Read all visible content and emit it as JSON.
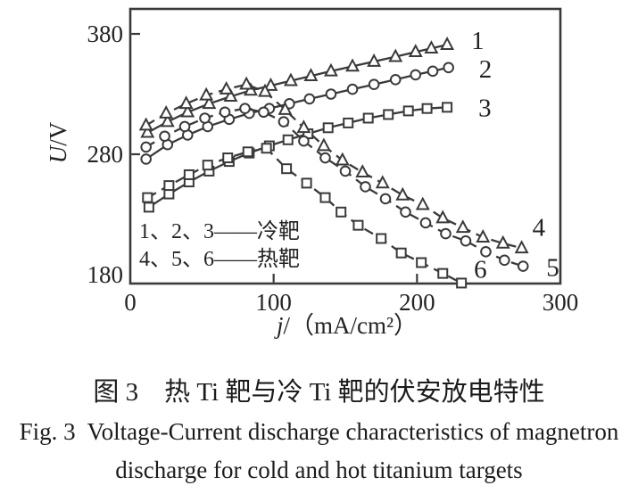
{
  "colors": {
    "ink": "#3a3a3a",
    "marker_fill": "#ffffff",
    "text": "#1c1c1c",
    "background": "#ffffff"
  },
  "caption": {
    "zh": "图 3　热 Ti 靶与冷 Ti 靶的伏安放电特性",
    "en_line1": "Fig. 3  Voltage-Current discharge characteristics of magnetron",
    "en_line2": "discharge for cold and hot titanium targets"
  },
  "chart_data": {
    "type": "line",
    "title": "图 3 热 Ti 靶与冷 Ti 靶的伏安放电特性 / Fig. 3 Voltage-Current discharge characteristics of magnetron discharge for cold and hot titanium targets",
    "xlabel": "j/（mA/cm²）",
    "xlabel_var": "j",
    "xlabel_rest": "/（mA/cm²）",
    "ylabel": "U/V",
    "ylabel_var": "U",
    "ylabel_rest": "/V",
    "xlim": [
      0,
      300
    ],
    "ylim": [
      180,
      380
    ],
    "grid": false,
    "legend": {
      "position": "inside bottom-left",
      "lines": [
        "1、2、3——冷靶",
        "4、5、6——热靶"
      ]
    },
    "axis": {
      "x": {
        "ticks": [
          {
            "label": "0",
            "value": 0,
            "mark": false
          },
          {
            "label": "100",
            "value": 100,
            "mark": true
          },
          {
            "label": "200",
            "value": 200,
            "mark": true
          },
          {
            "label": "300",
            "value": 300,
            "mark": false
          }
        ]
      },
      "y": {
        "ticks": [
          {
            "label": "380",
            "value": 380,
            "mark": true
          },
          {
            "label": "280",
            "value": 280,
            "mark": true
          },
          {
            "label": "180",
            "value": 180,
            "mark": false
          }
        ]
      }
    },
    "series": [
      {
        "name": "1",
        "group": "冷靶 (cold target)",
        "marker": "triangle",
        "line": "solid",
        "points": [
          [
            12,
            298
          ],
          [
            26,
            307
          ],
          [
            40,
            315
          ],
          [
            55,
            322
          ],
          [
            70,
            328
          ],
          [
            84,
            333
          ],
          [
            98,
            337
          ],
          [
            112,
            341
          ],
          [
            126,
            345
          ],
          [
            140,
            349
          ],
          [
            155,
            353
          ],
          [
            170,
            357
          ],
          [
            185,
            361
          ],
          [
            199,
            365
          ],
          [
            210,
            368
          ],
          [
            221,
            371
          ]
        ]
      },
      {
        "name": "2",
        "group": "冷靶 (cold target)",
        "marker": "circle",
        "line": "solid",
        "points": [
          [
            11,
            276
          ],
          [
            26,
            288
          ],
          [
            40,
            296
          ],
          [
            54,
            303
          ],
          [
            69,
            309
          ],
          [
            83,
            314
          ],
          [
            97,
            318
          ],
          [
            111,
            322
          ],
          [
            125,
            326
          ],
          [
            140,
            330
          ],
          [
            155,
            334
          ],
          [
            170,
            338
          ],
          [
            185,
            342
          ],
          [
            199,
            346
          ],
          [
            211,
            349
          ],
          [
            222,
            352
          ]
        ]
      },
      {
        "name": "3",
        "group": "冷靶 (cold target)",
        "marker": "square",
        "line": "solid",
        "points": [
          [
            13,
            236
          ],
          [
            27,
            247
          ],
          [
            41,
            257
          ],
          [
            55,
            266
          ],
          [
            69,
            274
          ],
          [
            83,
            281
          ],
          [
            97,
            287
          ],
          [
            110,
            292
          ],
          [
            124,
            297
          ],
          [
            138,
            302
          ],
          [
            152,
            306
          ],
          [
            166,
            310
          ],
          [
            180,
            313
          ],
          [
            194,
            316
          ],
          [
            207,
            318
          ],
          [
            221,
            319
          ]
        ]
      },
      {
        "name": "4",
        "group": "热靶 (hot target)",
        "marker": "triangle",
        "line": "dashed",
        "points": [
          [
            11,
            304
          ],
          [
            25,
            314
          ],
          [
            39,
            322
          ],
          [
            53,
            329
          ],
          [
            67,
            334
          ],
          [
            81,
            338
          ],
          [
            94,
            332
          ],
          [
            108,
            317
          ],
          [
            121,
            302
          ],
          [
            135,
            287
          ],
          [
            148,
            275
          ],
          [
            162,
            265
          ],
          [
            176,
            256
          ],
          [
            190,
            246
          ],
          [
            204,
            238
          ],
          [
            218,
            227
          ],
          [
            232,
            219
          ],
          [
            246,
            211
          ],
          [
            260,
            206
          ],
          [
            273,
            202
          ]
        ]
      },
      {
        "name": "5",
        "group": "热靶 (hot target)",
        "marker": "circle",
        "line": "dashed",
        "points": [
          [
            11,
            286
          ],
          [
            24,
            295
          ],
          [
            38,
            303
          ],
          [
            52,
            310
          ],
          [
            66,
            315
          ],
          [
            80,
            318
          ],
          [
            93,
            315
          ],
          [
            107,
            307
          ],
          [
            121,
            291
          ],
          [
            136,
            277
          ],
          [
            150,
            266
          ],
          [
            164,
            253
          ],
          [
            178,
            243
          ],
          [
            192,
            232
          ],
          [
            206,
            223
          ],
          [
            220,
            214
          ],
          [
            234,
            208
          ],
          [
            248,
            199
          ],
          [
            261,
            192
          ],
          [
            274,
            187
          ]
        ]
      },
      {
        "name": "6",
        "group": "热靶 (hot target)",
        "marker": "square",
        "line": "dashed",
        "points": [
          [
            12,
            244
          ],
          [
            27,
            254
          ],
          [
            41,
            263
          ],
          [
            54,
            271
          ],
          [
            68,
            277
          ],
          [
            82,
            282
          ],
          [
            95,
            285
          ],
          [
            109,
            268
          ],
          [
            123,
            256
          ],
          [
            136,
            244
          ],
          [
            147,
            232
          ],
          [
            159,
            221
          ],
          [
            175,
            210
          ],
          [
            189,
            198
          ],
          [
            203,
            190
          ],
          [
            218,
            181
          ],
          [
            231,
            173
          ]
        ]
      }
    ]
  }
}
